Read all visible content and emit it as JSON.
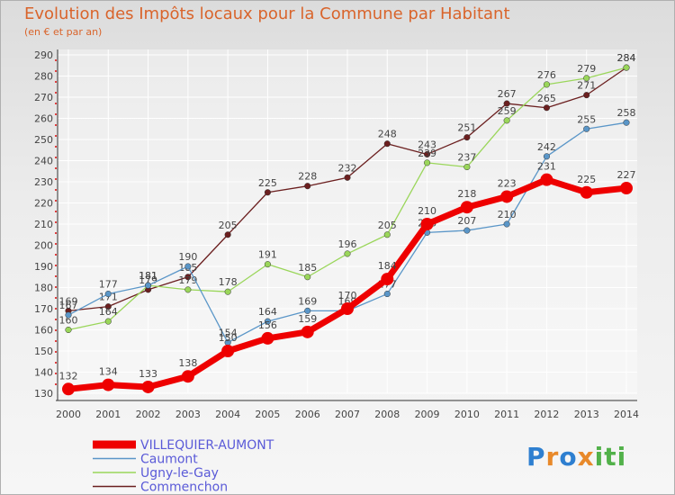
{
  "chart_data": {
    "type": "line",
    "title": "Evolution des Impôts locaux pour la Commune par Habitant",
    "subtitle": "(en € et par an)",
    "ylim": [
      130,
      290
    ],
    "yticks": [
      130,
      140,
      150,
      160,
      170,
      180,
      190,
      200,
      210,
      220,
      230,
      240,
      250,
      260,
      270,
      280,
      290
    ],
    "x": [
      "2000",
      "2001",
      "2002",
      "2003",
      "2004",
      "2005",
      "2006",
      "2007",
      "2008",
      "2009",
      "2010",
      "2011",
      "2012",
      "2013",
      "2014"
    ],
    "grid": true,
    "legend_position": "bottom-left",
    "series": [
      {
        "name": "Commenchon",
        "color": "#6b1f1f",
        "thick": false,
        "values": [
          169,
          171,
          179,
          185,
          205,
          225,
          228,
          232,
          248,
          243,
          251,
          267,
          265,
          271,
          284
        ]
      },
      {
        "name": "Ugny-le-Gay",
        "color": "#9ad65a",
        "thick": false,
        "values": [
          160,
          164,
          181,
          179,
          178,
          191,
          185,
          196,
          205,
          239,
          237,
          259,
          276,
          279,
          284
        ]
      },
      {
        "name": "Caumont",
        "color": "#5a96c8",
        "thick": false,
        "values": [
          167,
          177,
          181,
          190,
          154,
          164,
          169,
          169,
          177,
          206,
          207,
          210,
          242,
          255,
          258
        ]
      },
      {
        "name": "VILLEQUIER-AUMONT",
        "color": "#ee0000",
        "thick": true,
        "values": [
          132,
          134,
          133,
          138,
          150,
          156,
          159,
          170,
          184,
          210,
          218,
          223,
          231,
          225,
          227
        ]
      }
    ],
    "legend_order": [
      "VILLEQUIER-AUMONT",
      "Caumont",
      "Ugny-le-Gay",
      "Commenchon"
    ]
  },
  "logo": {
    "letters": [
      "P",
      "r",
      "o",
      "x",
      "i",
      "t",
      "i"
    ],
    "colors": [
      "#2e7fd0",
      "#e8892a",
      "#2e7fd0",
      "#e8892a",
      "#52b14a",
      "#52b14a",
      "#52b14a"
    ]
  }
}
